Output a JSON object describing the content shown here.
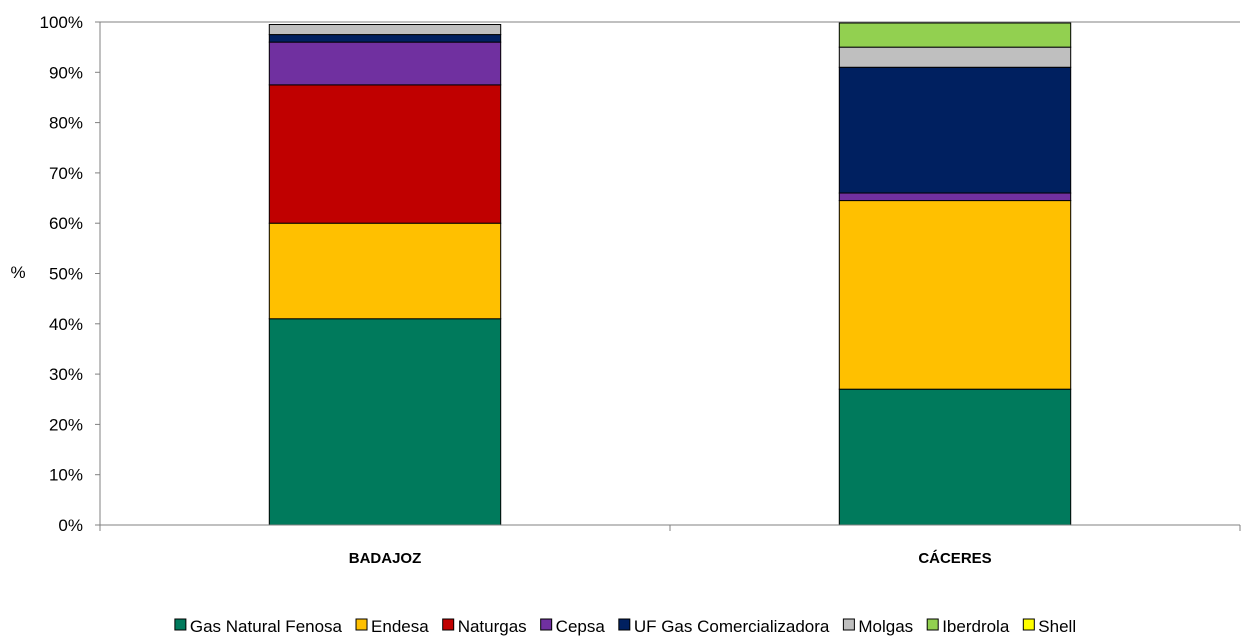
{
  "chart_data": {
    "type": "bar",
    "stacked": true,
    "categories": [
      "BADAJOZ",
      "CÁCERES"
    ],
    "ylabel": "%",
    "ylim": [
      0,
      100
    ],
    "yticks": [
      0,
      10,
      20,
      30,
      40,
      50,
      60,
      70,
      80,
      90,
      100
    ],
    "ytick_suffix": "%",
    "grid": false,
    "legend_position": "bottom",
    "series": [
      {
        "name": "Gas Natural Fenosa",
        "color": "#007A5C",
        "values": [
          41.0,
          27.0
        ]
      },
      {
        "name": "Endesa",
        "color": "#FFC000",
        "values": [
          19.0,
          37.5
        ]
      },
      {
        "name": "Naturgas",
        "color": "#C00000",
        "values": [
          27.5,
          0.0
        ]
      },
      {
        "name": "Cepsa",
        "color": "#7030A0",
        "values": [
          8.5,
          1.5
        ]
      },
      {
        "name": "UF Gas Comercializadora",
        "color": "#002060",
        "values": [
          1.5,
          25.0
        ]
      },
      {
        "name": "Molgas",
        "color": "#BFBFBF",
        "values": [
          2.0,
          4.0
        ]
      },
      {
        "name": "Iberdrola",
        "color": "#92D050",
        "values": [
          0.0,
          4.8
        ]
      },
      {
        "name": "Shell",
        "color": "#FFFF00",
        "values": [
          0.0,
          0.0
        ]
      }
    ]
  }
}
